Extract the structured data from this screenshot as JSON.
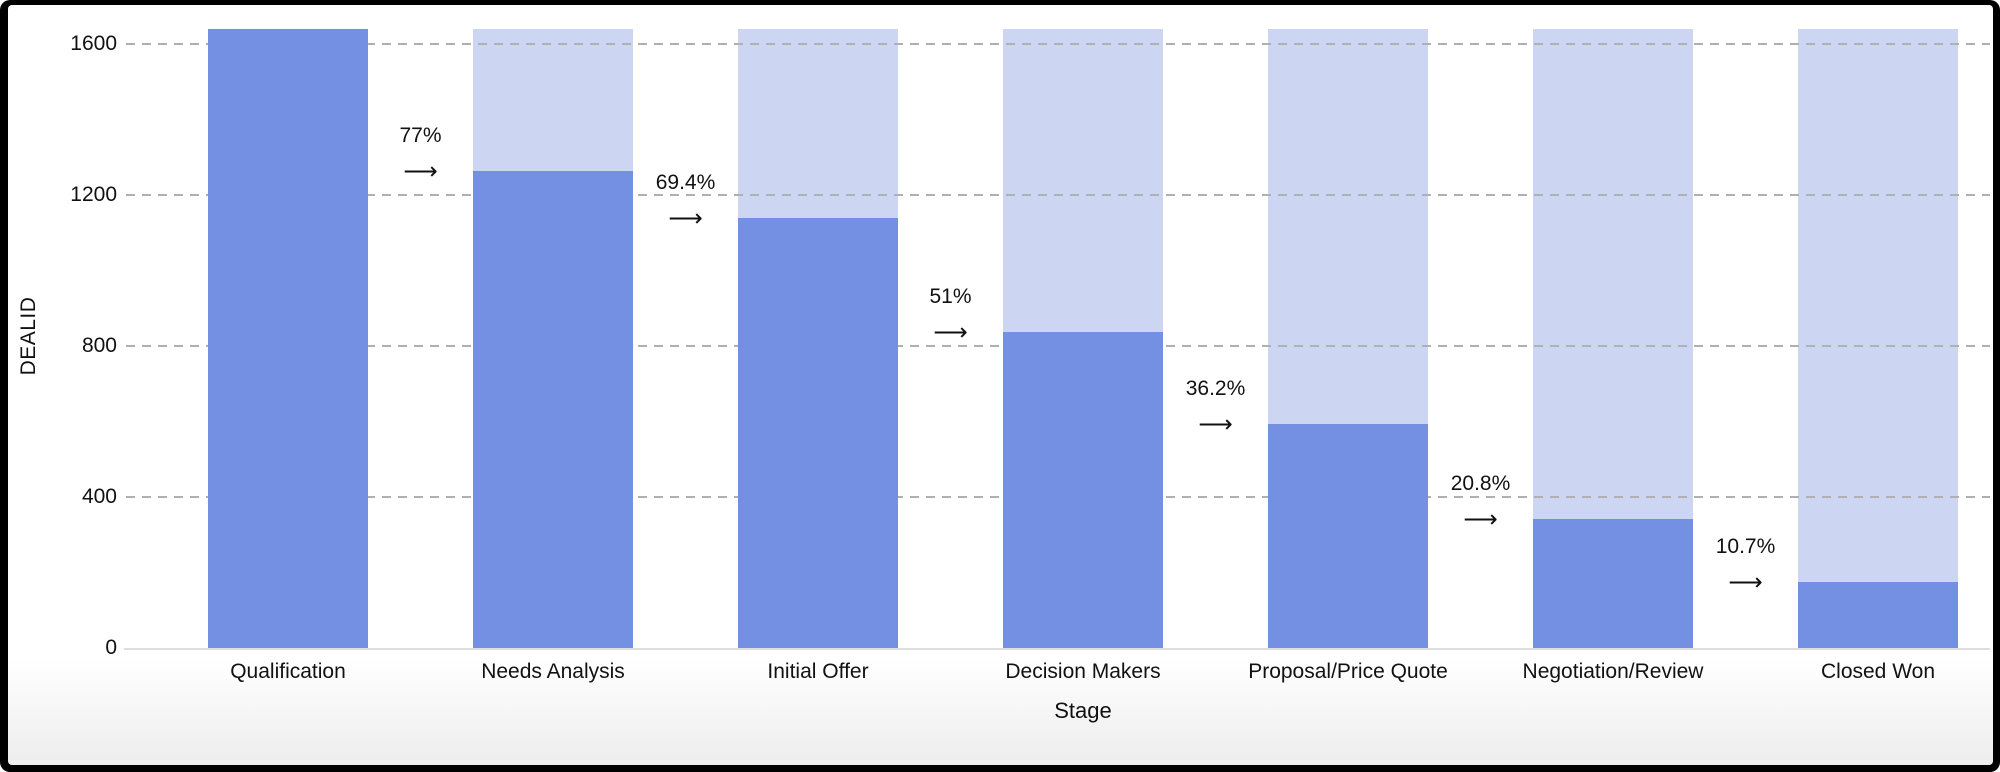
{
  "chart_data": {
    "type": "bar",
    "subtype": "funnel-conversion",
    "title": "",
    "xlabel": "Stage",
    "ylabel": "DEALID",
    "categories": [
      "Qualification",
      "Needs Analysis",
      "Initial Offer",
      "Decision Makers",
      "Proposal/Price Quote",
      "Negotiation/Review",
      "Closed Won"
    ],
    "values": [
      1640,
      1263,
      1138,
      836,
      594,
      341,
      175
    ],
    "background_max": 1640,
    "conversion_labels": [
      "77%",
      "69.4%",
      "51%",
      "36.2%",
      "20.8%",
      "10.7%"
    ],
    "arrow_glyph": "⟶",
    "yticks": [
      0,
      400,
      800,
      1200,
      1600
    ],
    "ylim": [
      0,
      1700
    ],
    "legend": "none",
    "grid": "horizontal-dashed",
    "colors": {
      "bar": "#7490e2",
      "bar_background": "#ccd5f2",
      "gridline": "#b0b0b0",
      "axis_line": "#dedede",
      "text": "#111111",
      "frame": "#000000",
      "canvas": "#ffffff"
    }
  }
}
